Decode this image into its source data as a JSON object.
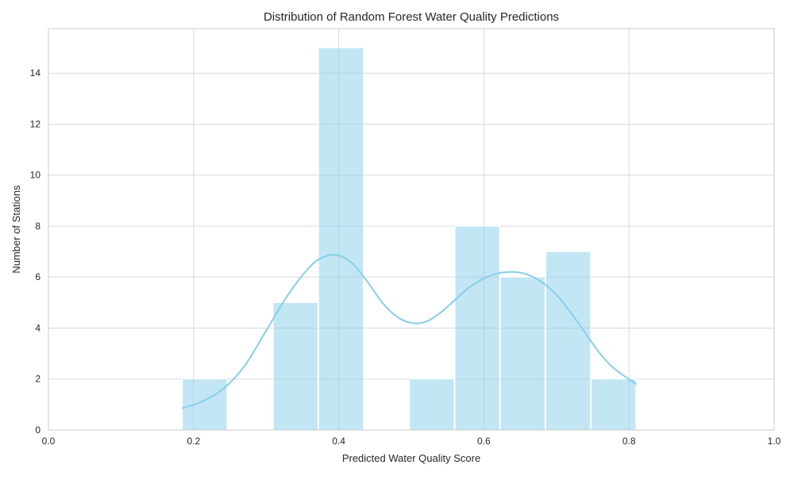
{
  "chart_data": {
    "type": "bar",
    "chart_kind": "histogram-with-kde",
    "title": "Distribution of Random Forest Water Quality Predictions",
    "xlabel": "Predicted Water Quality Score",
    "ylabel": "Number of Stations",
    "xlim": [
      0.0,
      1.0
    ],
    "ylim": [
      0,
      15.75
    ],
    "x_ticks": [
      "0.0",
      "0.2",
      "0.4",
      "0.6",
      "0.8",
      "1.0"
    ],
    "x_tick_values": [
      0.0,
      0.2,
      0.4,
      0.6,
      0.8,
      1.0
    ],
    "y_ticks": [
      "0",
      "2",
      "4",
      "6",
      "8",
      "10",
      "12",
      "14"
    ],
    "y_tick_values": [
      0,
      2,
      4,
      6,
      8,
      10,
      12,
      14
    ],
    "grid": true,
    "bins": [
      {
        "x0": 0.184,
        "x1": 0.2466,
        "count": 2
      },
      {
        "x0": 0.2466,
        "x1": 0.3092,
        "count": 0
      },
      {
        "x0": 0.3092,
        "x1": 0.3718,
        "count": 5
      },
      {
        "x0": 0.3718,
        "x1": 0.4344,
        "count": 15
      },
      {
        "x0": 0.4344,
        "x1": 0.497,
        "count": 0
      },
      {
        "x0": 0.497,
        "x1": 0.5596,
        "count": 2
      },
      {
        "x0": 0.5596,
        "x1": 0.6222,
        "count": 8
      },
      {
        "x0": 0.6222,
        "x1": 0.6848,
        "count": 6
      },
      {
        "x0": 0.6848,
        "x1": 0.7474,
        "count": 7
      },
      {
        "x0": 0.7474,
        "x1": 0.81,
        "count": 2
      }
    ],
    "kde": {
      "x": [
        0.184,
        0.21,
        0.24,
        0.27,
        0.3,
        0.33,
        0.36,
        0.38,
        0.4,
        0.42,
        0.44,
        0.46,
        0.48,
        0.5,
        0.52,
        0.54,
        0.56,
        0.58,
        0.6,
        0.62,
        0.64,
        0.66,
        0.68,
        0.7,
        0.72,
        0.74,
        0.76,
        0.78,
        0.81
      ],
      "y": [
        0.85,
        1.1,
        1.6,
        2.5,
        3.9,
        5.3,
        6.4,
        6.8,
        6.85,
        6.5,
        5.8,
        5.0,
        4.45,
        4.2,
        4.25,
        4.6,
        5.1,
        5.6,
        5.95,
        6.15,
        6.2,
        6.1,
        5.8,
        5.3,
        4.6,
        3.8,
        3.0,
        2.4,
        1.8
      ]
    },
    "colors": {
      "bar_fill": "#87ceeb",
      "bar_opacity": 0.5,
      "kde_line": "#87ceeb",
      "grid": "#d9d9d9",
      "frame": "#cccccc"
    }
  }
}
